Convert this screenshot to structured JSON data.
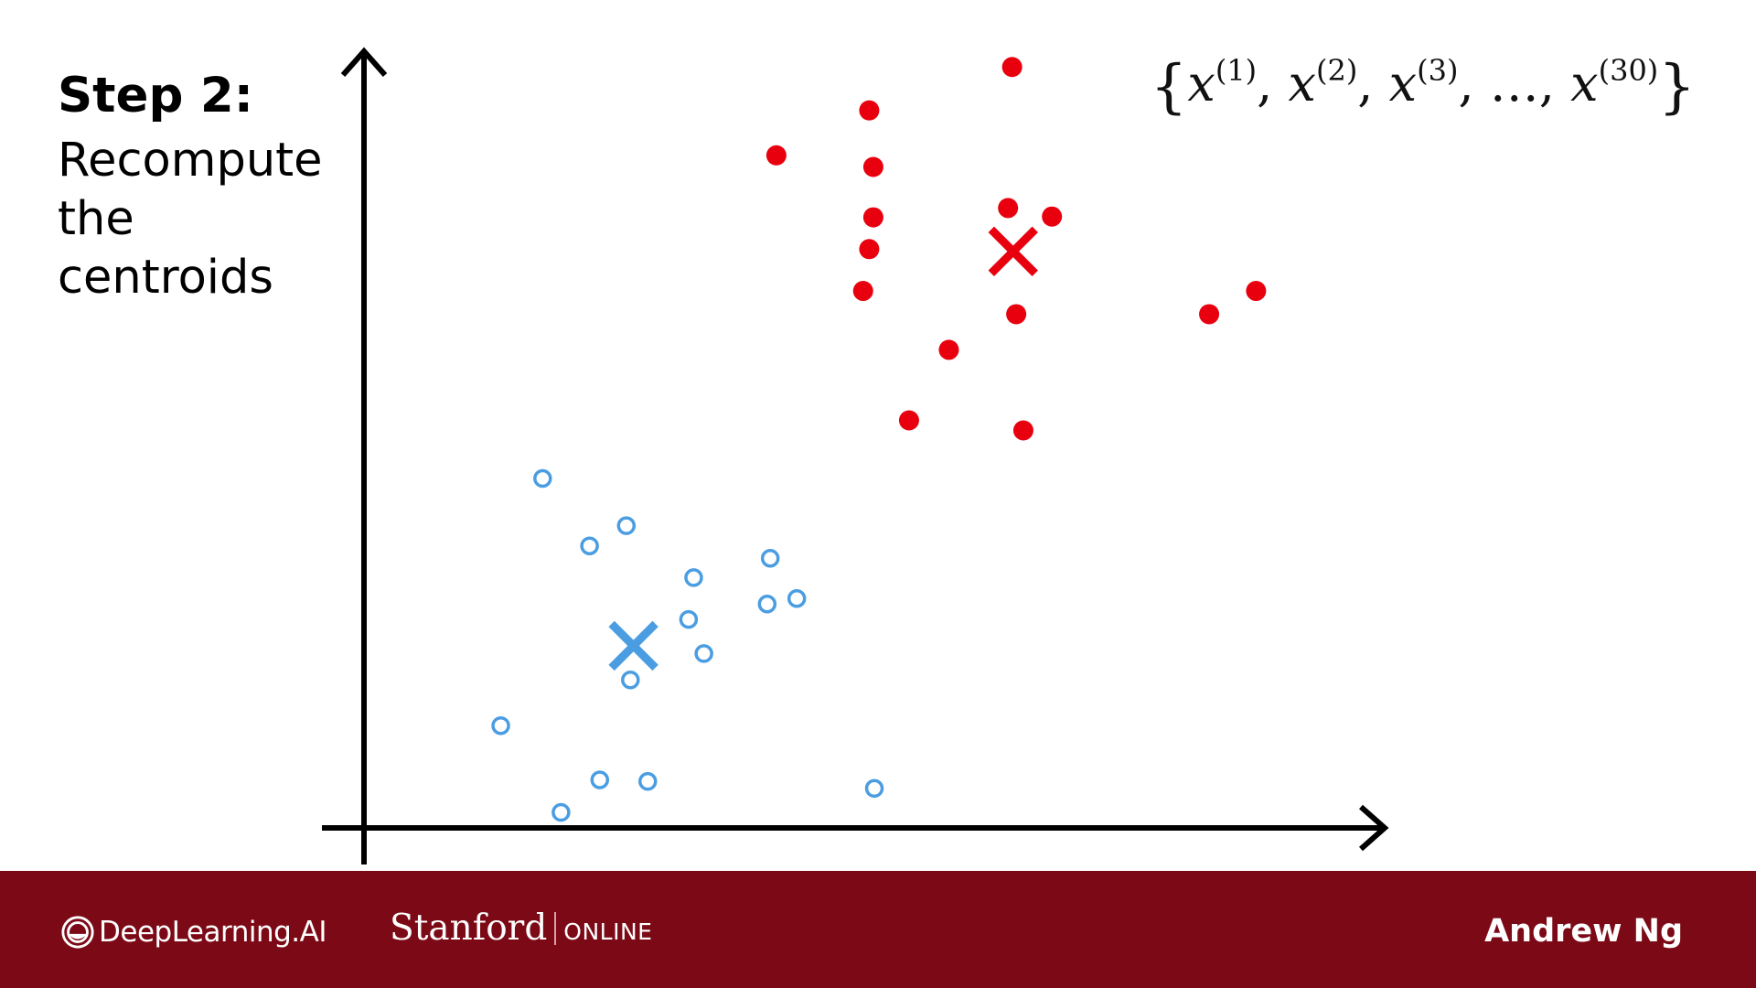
{
  "slide": {
    "step_title": "Step 2:",
    "step_description": "Recompute the centroids",
    "formula": {
      "open": "{",
      "close": "}",
      "var": "x",
      "sup1": "(1)",
      "sup2": "(2)",
      "sup3": "(3)",
      "ellipsis": "…",
      "sup_last": "(30)"
    }
  },
  "chart_data": {
    "type": "scatter",
    "title": "",
    "xlabel": "",
    "ylabel": "",
    "xlim": [
      0,
      100
    ],
    "ylim": [
      0,
      100
    ],
    "grid": false,
    "axes_ticks": false,
    "series": [
      {
        "color": "#e8000e",
        "marker": "filled-circle",
        "points": [
          [
            63.5,
            98.2
          ],
          [
            49.5,
            92.6
          ],
          [
            40.4,
            86.8
          ],
          [
            49.9,
            85.3
          ],
          [
            63.1,
            80.0
          ],
          [
            67.4,
            78.9
          ],
          [
            49.9,
            78.8
          ],
          [
            49.5,
            74.7
          ],
          [
            48.9,
            69.3
          ],
          [
            63.9,
            66.3
          ],
          [
            82.8,
            66.3
          ],
          [
            87.4,
            69.3
          ],
          [
            57.3,
            61.7
          ],
          [
            53.4,
            52.6
          ],
          [
            64.6,
            51.3
          ]
        ]
      },
      {
        "color": "#4b9de2",
        "marker": "hollow-circle",
        "points": [
          [
            17.5,
            45.1
          ],
          [
            25.7,
            39.0
          ],
          [
            22.1,
            36.4
          ],
          [
            32.3,
            32.3
          ],
          [
            39.8,
            34.8
          ],
          [
            31.8,
            26.9
          ],
          [
            39.5,
            28.9
          ],
          [
            42.4,
            29.6
          ],
          [
            33.3,
            22.5
          ],
          [
            26.1,
            19.1
          ],
          [
            13.4,
            13.2
          ],
          [
            23.1,
            6.2
          ],
          [
            27.8,
            6.0
          ],
          [
            50.0,
            5.1
          ],
          [
            19.3,
            2.0
          ]
        ]
      }
    ],
    "centroids": [
      {
        "x": 63.6,
        "y": 74.4,
        "color": "#e8000e",
        "marker": "x"
      },
      {
        "x": 26.4,
        "y": 23.5,
        "color": "#4b9de2",
        "marker": "x"
      }
    ]
  },
  "footer": {
    "background": "#7c0a16",
    "brand": "DeepLearning.AI",
    "partner": "Stanford",
    "partner_sub": "ONLINE",
    "author": "Andrew Ng"
  }
}
